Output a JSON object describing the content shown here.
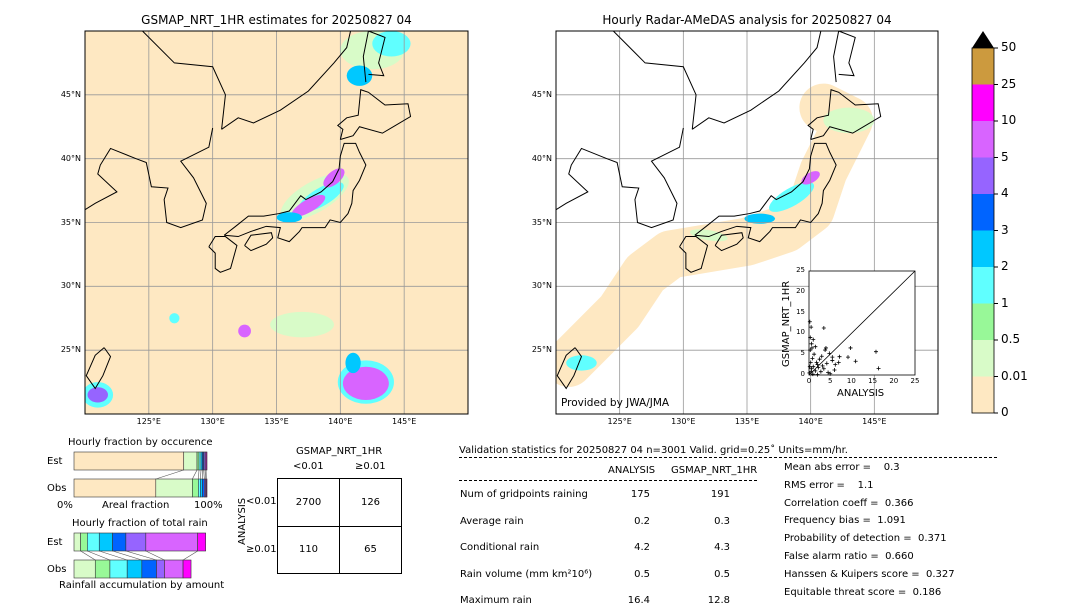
{
  "left_map": {
    "title": "GSMAP_NRT_1HR estimates for 20250827 04"
  },
  "right_map": {
    "title": "Hourly Radar-AMeDAS analysis for 20250827 04",
    "credit": "Provided by JWA/JMA"
  },
  "lat_labels": [
    "45°N",
    "40°N",
    "35°N",
    "30°N",
    "25°N"
  ],
  "lon_labels": [
    "125°E",
    "130°E",
    "135°E",
    "140°E",
    "145°E"
  ],
  "colorbar": {
    "labels": [
      "0",
      "0.01",
      "0.5",
      "1",
      "2",
      "3",
      "4",
      "5",
      "10",
      "25",
      "50"
    ],
    "colors": [
      "#fee8c2",
      "#d8fbc8",
      "#98f898",
      "#60ffff",
      "#00c8ff",
      "#0064ff",
      "#9664ff",
      "#d864ff",
      "#ff00ff",
      "#cc9a3e"
    ],
    "extend_color": "#000000"
  },
  "scatter": {
    "xlabel": "ANALYSIS",
    "ylabel": "GSMAP_NRT_1HR",
    "ticks": [
      "0",
      "5",
      "10",
      "15",
      "20",
      "25"
    ],
    "range": [
      0,
      25
    ],
    "points": [
      [
        0.2,
        12.8
      ],
      [
        0.5,
        11.5
      ],
      [
        3.5,
        11.3
      ],
      [
        0.3,
        9
      ],
      [
        1,
        8.5
      ],
      [
        0.6,
        7.5
      ],
      [
        1.5,
        6.8
      ],
      [
        4,
        6.5
      ],
      [
        3.8,
        6
      ],
      [
        9.8,
        6.5
      ],
      [
        15.8,
        5.6
      ],
      [
        16.4,
        1.6
      ],
      [
        11,
        3.3
      ],
      [
        9.2,
        4.3
      ],
      [
        7.2,
        4.4
      ],
      [
        4.8,
        5.2
      ],
      [
        3,
        4.5
      ],
      [
        2.5,
        3.8
      ],
      [
        5.5,
        3.5
      ],
      [
        6.2,
        2.5
      ],
      [
        7,
        3
      ],
      [
        4.2,
        2.8
      ],
      [
        2,
        2.5
      ],
      [
        1.2,
        5
      ],
      [
        0.8,
        4
      ],
      [
        0.4,
        3
      ],
      [
        0.2,
        2
      ],
      [
        0.6,
        1.5
      ],
      [
        1.5,
        1
      ],
      [
        2.8,
        0.8
      ],
      [
        3.5,
        1.5
      ],
      [
        5,
        0.3
      ],
      [
        0.1,
        0.5
      ],
      [
        0.9,
        0.2
      ],
      [
        2,
        0.1
      ],
      [
        4.5,
        0.6
      ],
      [
        0.3,
        6
      ],
      [
        0.7,
        6.5
      ],
      [
        1.8,
        3
      ],
      [
        2.2,
        1.8
      ],
      [
        3.2,
        2.2
      ],
      [
        6,
        1.2
      ],
      [
        5.5,
        4.3
      ],
      [
        1,
        2
      ],
      [
        0.5,
        0.8
      ]
    ]
  },
  "occurrence": {
    "title": "Hourly fraction by occurence",
    "est_label": "Est",
    "obs_label": "Obs",
    "axis_left": "0%",
    "axis_mid": "Areal fraction",
    "axis_right": "100%",
    "est": [
      82.5,
      10,
      1.5,
      1.5,
      1,
      1,
      1,
      0.8,
      0.7
    ],
    "obs": [
      61.5,
      27.5,
      4.5,
      1.5,
      1.5,
      1.5,
      1,
      0.5,
      0.5
    ]
  },
  "total_rain": {
    "title": "Hourly fraction of total rain",
    "est_label": "Est",
    "obs_label": "Obs",
    "footer": "Rainfall accumulation by amount",
    "est": [
      0,
      5,
      5,
      9,
      10,
      10,
      15,
      39,
      6
    ],
    "obs": [
      0,
      16,
      11,
      13,
      11,
      11,
      6,
      14,
      6
    ]
  },
  "contingency": {
    "col_title": "GSMAP_NRT_1HR",
    "col_labels": [
      "<0.01",
      "≥0.01"
    ],
    "row_title": "ANALYSIS",
    "row_labels": [
      "<0.01",
      "≥0.01"
    ],
    "cells": [
      [
        "2700",
        "126"
      ],
      [
        "110",
        "65"
      ]
    ]
  },
  "validation": {
    "header": "Validation statistics for 20250827 04  n=3001 Valid. grid=0.25˚ Units=mm/hr.",
    "col_analysis": "ANALYSIS",
    "col_gsmap": "GSMAP_NRT_1HR",
    "rows": [
      {
        "label": "Num of gridpoints raining",
        "analysis": "175",
        "gsmap": "191"
      },
      {
        "label": "Average rain",
        "analysis": "0.2",
        "gsmap": "0.3"
      },
      {
        "label": "Conditional rain",
        "analysis": "4.2",
        "gsmap": "4.3"
      },
      {
        "label": "Rain volume (mm km²10⁶)",
        "analysis": "0.5",
        "gsmap": "0.5"
      },
      {
        "label": "Maximum rain",
        "analysis": "16.4",
        "gsmap": "12.8"
      }
    ],
    "scores": [
      "Mean abs error =    0.3",
      "RMS error =    1.1",
      "Correlation coeff =  0.366",
      "Frequency bias =  1.091",
      "Probability of detection =  0.371",
      "False alarm ratio =  0.660",
      "Hanssen & Kuipers score =  0.327",
      "Equitable threat score =  0.186"
    ]
  }
}
